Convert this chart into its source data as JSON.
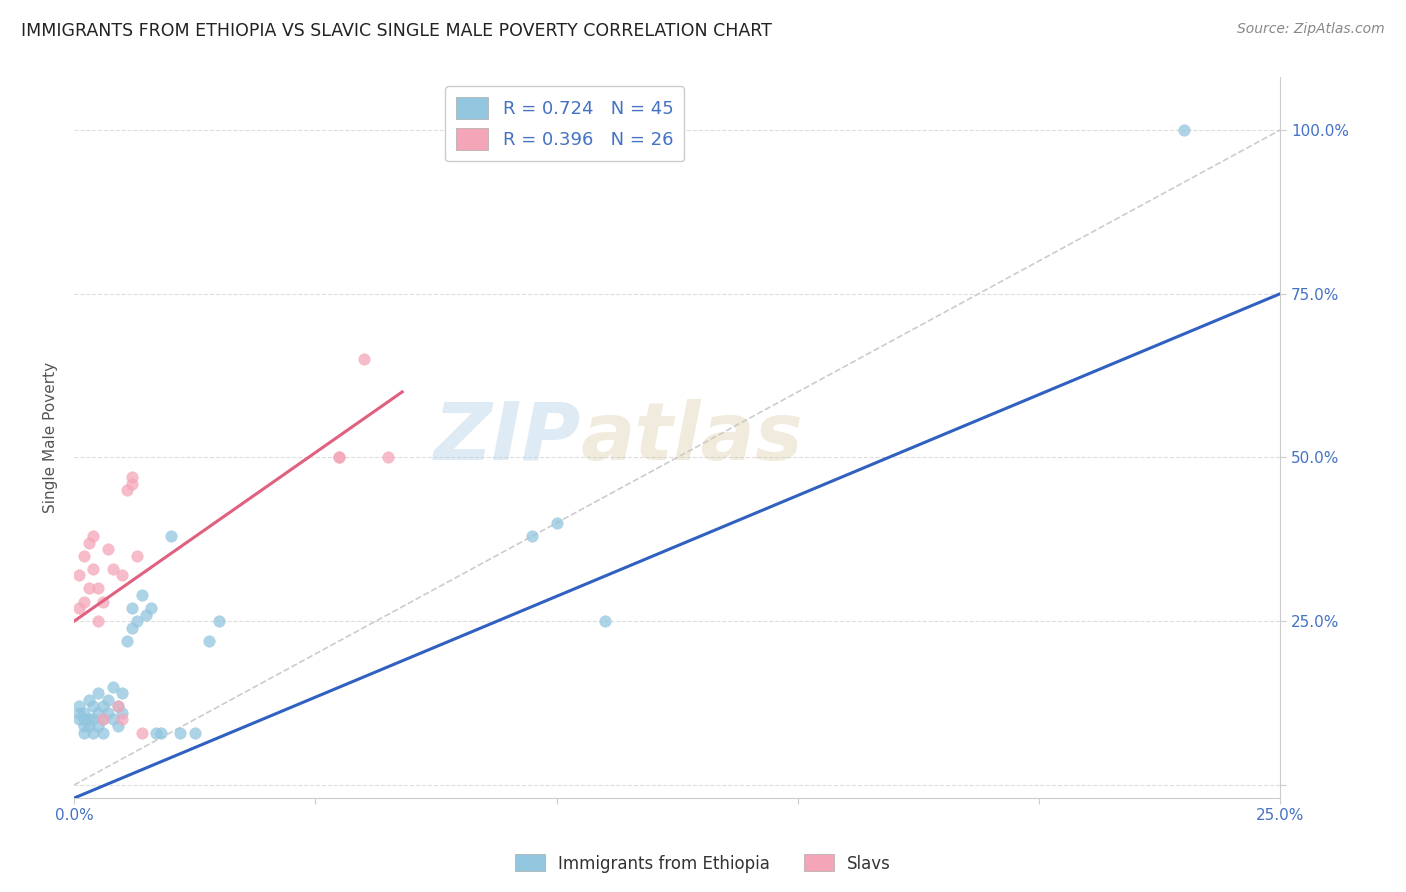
{
  "title": "IMMIGRANTS FROM ETHIOPIA VS SLAVIC SINGLE MALE POVERTY CORRELATION CHART",
  "source": "Source: ZipAtlas.com",
  "ylabel": "Single Male Poverty",
  "xrange": [
    0,
    0.25
  ],
  "yrange": [
    -0.02,
    1.08
  ],
  "blue_color": "#92c5de",
  "pink_color": "#f4a6b8",
  "blue_line_color": "#3060c0",
  "pink_line_color": "#e06080",
  "diagonal_color": "#cccccc",
  "R_blue": 0.724,
  "N_blue": 45,
  "R_pink": 0.396,
  "N_pink": 26,
  "watermark_zip": "ZIP",
  "watermark_atlas": "atlas",
  "legend_label_blue": "Immigrants from Ethiopia",
  "legend_label_pink": "Slavs",
  "title_fontsize": 12.5,
  "source_fontsize": 10,
  "tick_label_color": "#4472c4",
  "blue_line_x": [
    0.0,
    0.25
  ],
  "blue_line_y": [
    -0.02,
    0.75
  ],
  "pink_line_x": [
    0.0,
    0.068
  ],
  "pink_line_y": [
    0.25,
    0.6
  ],
  "blue_x": [
    0.001,
    0.001,
    0.001,
    0.002,
    0.002,
    0.002,
    0.002,
    0.003,
    0.003,
    0.003,
    0.004,
    0.004,
    0.004,
    0.005,
    0.005,
    0.005,
    0.006,
    0.006,
    0.006,
    0.007,
    0.007,
    0.008,
    0.008,
    0.009,
    0.009,
    0.01,
    0.01,
    0.011,
    0.012,
    0.012,
    0.013,
    0.014,
    0.015,
    0.016,
    0.017,
    0.018,
    0.02,
    0.022,
    0.025,
    0.028,
    0.03,
    0.095,
    0.1,
    0.11,
    0.23
  ],
  "blue_y": [
    0.1,
    0.11,
    0.12,
    0.08,
    0.09,
    0.1,
    0.11,
    0.09,
    0.1,
    0.13,
    0.08,
    0.1,
    0.12,
    0.09,
    0.11,
    0.14,
    0.1,
    0.12,
    0.08,
    0.11,
    0.13,
    0.1,
    0.15,
    0.09,
    0.12,
    0.11,
    0.14,
    0.22,
    0.24,
    0.27,
    0.25,
    0.29,
    0.26,
    0.27,
    0.08,
    0.08,
    0.38,
    0.08,
    0.08,
    0.22,
    0.25,
    0.38,
    0.4,
    0.25,
    1.0
  ],
  "pink_x": [
    0.001,
    0.001,
    0.002,
    0.002,
    0.003,
    0.003,
    0.004,
    0.004,
    0.005,
    0.005,
    0.006,
    0.006,
    0.007,
    0.008,
    0.009,
    0.01,
    0.01,
    0.011,
    0.012,
    0.012,
    0.013,
    0.014,
    0.055,
    0.055,
    0.06,
    0.065
  ],
  "pink_y": [
    0.27,
    0.32,
    0.28,
    0.35,
    0.3,
    0.37,
    0.33,
    0.38,
    0.25,
    0.3,
    0.28,
    0.1,
    0.36,
    0.33,
    0.12,
    0.32,
    0.1,
    0.45,
    0.46,
    0.47,
    0.35,
    0.08,
    0.5,
    0.5,
    0.65,
    0.5
  ]
}
